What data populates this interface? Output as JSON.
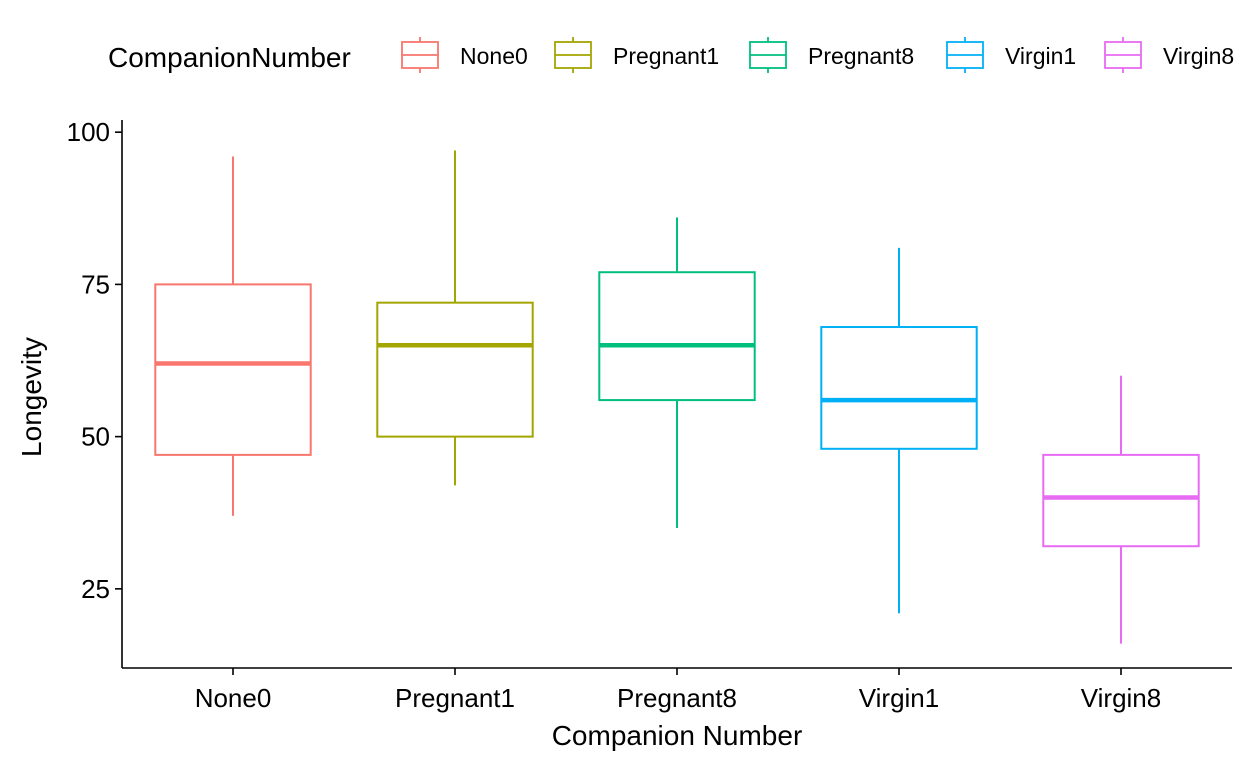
{
  "chart_data": {
    "type": "box",
    "xlabel": "Companion Number",
    "ylabel": "Longevity",
    "ylim": [
      12,
      102
    ],
    "yticks": [
      25,
      50,
      75,
      100
    ],
    "grid": false,
    "legend": {
      "title": "CompanionNumber",
      "position": "top",
      "entries": [
        "None0",
        "Pregnant1",
        "Pregnant8",
        "Virgin1",
        "Virgin8"
      ]
    },
    "categories": [
      "None0",
      "Pregnant1",
      "Pregnant8",
      "Virgin1",
      "Virgin8"
    ],
    "series": [
      {
        "category": "None0",
        "color": "#F8766D",
        "min": 37,
        "q1": 47,
        "median": 62,
        "q3": 75,
        "max": 96
      },
      {
        "category": "Pregnant1",
        "color": "#A3A500",
        "min": 42,
        "q1": 50,
        "median": 65,
        "q3": 72,
        "max": 97
      },
      {
        "category": "Pregnant8",
        "color": "#00BF7D",
        "min": 35,
        "q1": 56,
        "median": 65,
        "q3": 77,
        "max": 86
      },
      {
        "category": "Virgin1",
        "color": "#00B0F6",
        "min": 21,
        "q1": 48,
        "median": 56,
        "q3": 68,
        "max": 81
      },
      {
        "category": "Virgin8",
        "color": "#E76BF3",
        "min": 16,
        "q1": 32,
        "median": 40,
        "q3": 47,
        "max": 60
      }
    ]
  }
}
